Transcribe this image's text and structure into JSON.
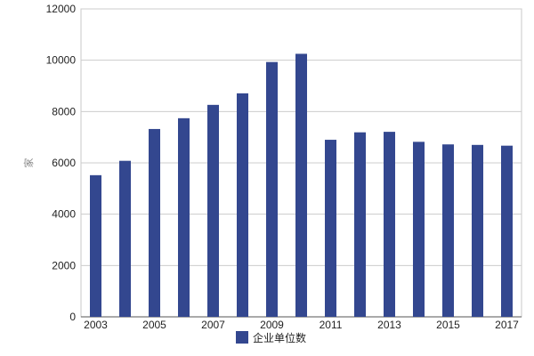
{
  "chart_data": {
    "type": "bar",
    "categories": [
      "2003",
      "2004",
      "2005",
      "2006",
      "2007",
      "2008",
      "2009",
      "2010",
      "2011",
      "2012",
      "2013",
      "2014",
      "2015",
      "2016",
      "2017"
    ],
    "x_tick_labels": [
      "2003",
      "",
      "2005",
      "",
      "2007",
      "",
      "2009",
      "",
      "2011",
      "",
      "2013",
      "",
      "2015",
      "",
      "2017"
    ],
    "series": [
      {
        "name": "企业单位数",
        "values": [
          5520,
          6080,
          7320,
          7740,
          8260,
          8710,
          9930,
          10250,
          6900,
          7190,
          7210,
          6820,
          6720,
          6700,
          6670
        ],
        "color": "#33478f"
      }
    ],
    "ylabel": "家",
    "ylim": [
      0,
      12000
    ],
    "y_ticks": [
      "0",
      "2000",
      "4000",
      "6000",
      "8000",
      "10000",
      "12000"
    ],
    "grid": true,
    "legend_position": "bottom-center"
  }
}
